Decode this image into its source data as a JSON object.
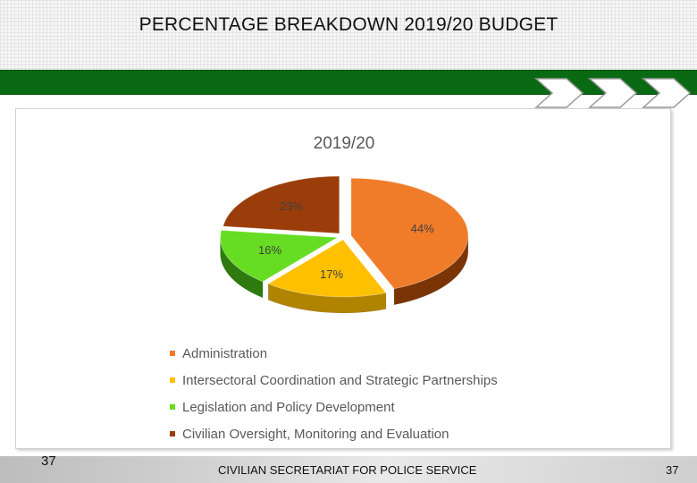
{
  "slide": {
    "title": "PERCENTAGE BREAKDOWN 2019/20 BUDGET",
    "page_number_left": "37",
    "page_number_right": "37",
    "footer_text": "CIVILIAN SECRETARIAT FOR POLICE SERVICE"
  },
  "theme": {
    "green_bar": "#0a6a14",
    "chevron_color": "#ffffff"
  },
  "chart_data": {
    "type": "pie",
    "style": "3d",
    "title": "2019/20",
    "legend_position": "bottom-left",
    "series": [
      {
        "name": "Administration",
        "value": 44,
        "label": "44%",
        "color": "#f07c2a",
        "side_color": "#7a3406"
      },
      {
        "name": "Intersectoral Coordination and Strategic Partnerships",
        "value": 17,
        "label": "17%",
        "color": "#ffc000",
        "side_color": "#b08400"
      },
      {
        "name": "Legislation and Policy Development",
        "value": 16,
        "label": "16%",
        "color": "#66dd22",
        "side_color": "#2f7a0e"
      },
      {
        "name": "Civilian Oversight, Monitoring and Evaluation",
        "value": 23,
        "label": "23%",
        "color": "#9a3d0a",
        "side_color": "#5a2002"
      }
    ]
  }
}
